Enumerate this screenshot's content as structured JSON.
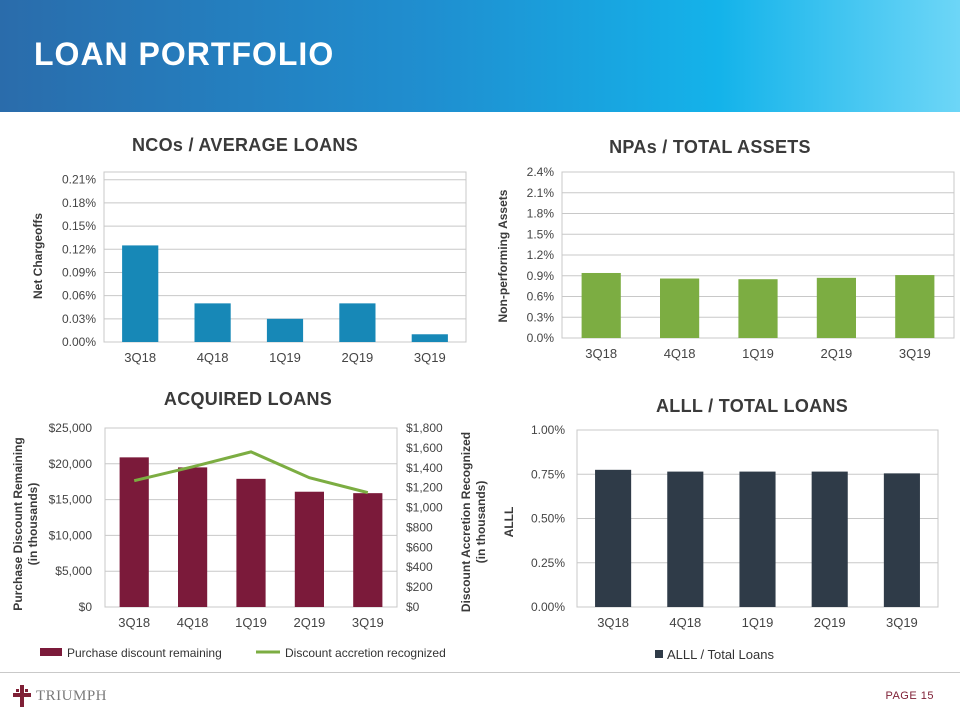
{
  "header": {
    "title": "LOAN PORTFOLIO"
  },
  "footer": {
    "brand": "TRIUMPH",
    "page": "PAGE 15"
  },
  "colors": {
    "nco_bar": "#1788b7",
    "npa_bar": "#7cad42",
    "acq_bar": "#7b1a3a",
    "acq_line": "#7cad42",
    "alll_bar": "#2f3b48"
  },
  "chart_data": [
    {
      "id": "nco",
      "type": "bar",
      "title": "NCOs / AVERAGE LOANS",
      "ylabel": "Net Chargeoffs",
      "categories": [
        "3Q18",
        "4Q18",
        "1Q19",
        "2Q19",
        "3Q19"
      ],
      "values": [
        0.125,
        0.05,
        0.03,
        0.05,
        0.01
      ],
      "ylim": [
        0,
        0.22
      ],
      "yticks": [
        "0.00%",
        "0.03%",
        "0.06%",
        "0.09%",
        "0.12%",
        "0.15%",
        "0.18%",
        "0.21%"
      ],
      "ytick_values": [
        0,
        0.03,
        0.06,
        0.09,
        0.12,
        0.15,
        0.18,
        0.21
      ]
    },
    {
      "id": "npa",
      "type": "bar",
      "title": "NPAs / TOTAL ASSETS",
      "ylabel": "Non-performing Assets",
      "categories": [
        "3Q18",
        "4Q18",
        "1Q19",
        "2Q19",
        "3Q19"
      ],
      "values": [
        0.94,
        0.86,
        0.85,
        0.87,
        0.91
      ],
      "ylim": [
        0,
        2.4
      ],
      "yticks": [
        "0.0%",
        "0.3%",
        "0.6%",
        "0.9%",
        "1.2%",
        "1.5%",
        "1.8%",
        "2.1%",
        "2.4%"
      ],
      "ytick_values": [
        0,
        0.3,
        0.6,
        0.9,
        1.2,
        1.5,
        1.8,
        2.1,
        2.4
      ]
    },
    {
      "id": "acq",
      "type": "bar",
      "title": "ACQUIRED LOANS",
      "ylabel": "Purchase Discount Remaining",
      "ylabel2": "(in thousands)",
      "y2label": "Discount Accretion Recognized",
      "y2label2": "(in thousands)",
      "categories": [
        "3Q18",
        "4Q18",
        "1Q19",
        "2Q19",
        "3Q19"
      ],
      "series": [
        {
          "name": "Purchase discount remaining",
          "type": "bar",
          "axis": "left",
          "values": [
            20900,
            19500,
            17900,
            16100,
            15900
          ]
        },
        {
          "name": "Discount accretion recognized",
          "type": "line",
          "axis": "right",
          "values": [
            1270,
            1410,
            1560,
            1300,
            1150
          ]
        }
      ],
      "ylim": [
        0,
        25000
      ],
      "yticks": [
        "$0",
        "$5,000",
        "$10,000",
        "$15,000",
        "$20,000",
        "$25,000"
      ],
      "ytick_values": [
        0,
        5000,
        10000,
        15000,
        20000,
        25000
      ],
      "y2lim": [
        0,
        1800
      ],
      "y2ticks": [
        "$0",
        "$200",
        "$400",
        "$600",
        "$800",
        "$1,000",
        "$1,200",
        "$1,400",
        "$1,600",
        "$1,800"
      ],
      "y2tick_values": [
        0,
        200,
        400,
        600,
        800,
        1000,
        1200,
        1400,
        1600,
        1800
      ],
      "legend": [
        "Purchase discount remaining",
        "Discount accretion recognized"
      ]
    },
    {
      "id": "alll",
      "type": "bar",
      "title": "ALLL / TOTAL LOANS",
      "ylabel": "ALLL",
      "categories": [
        "3Q18",
        "4Q18",
        "1Q19",
        "2Q19",
        "3Q19"
      ],
      "values": [
        0.775,
        0.765,
        0.765,
        0.765,
        0.755
      ],
      "ylim": [
        0,
        1.0
      ],
      "yticks": [
        "0.00%",
        "0.25%",
        "0.50%",
        "0.75%",
        "1.00%"
      ],
      "ytick_values": [
        0,
        0.25,
        0.5,
        0.75,
        1.0
      ],
      "legend": [
        "ALLL / Total Loans"
      ]
    }
  ]
}
